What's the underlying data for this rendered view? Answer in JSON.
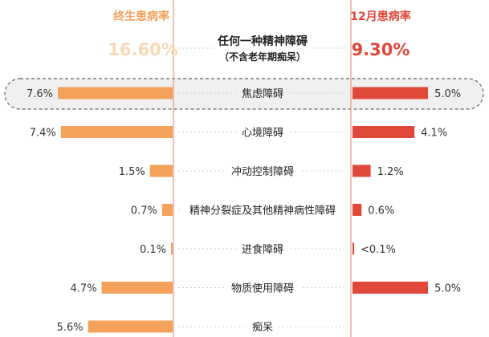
{
  "chart_data": {
    "type": "bar",
    "title": "任何一种精神障碍",
    "subtitle": "（不含老年期痴呆）",
    "categories": [
      "焦虑障碍",
      "心境障碍",
      "冲动控制障碍",
      "精神分裂症及其他精神病性障碍",
      "进食障碍",
      "物质使用障碍",
      "痴呆"
    ],
    "series": [
      {
        "name": "终生患病率",
        "total_label": "16.60%",
        "values": [
          7.6,
          7.4,
          1.5,
          0.7,
          0.1,
          4.7,
          5.6
        ],
        "value_labels": [
          "7.6%",
          "7.4%",
          "1.5%",
          "0.7%",
          "0.1%",
          "4.7%",
          "5.6%"
        ]
      },
      {
        "name": "12月患病率",
        "total_label": "9.30%",
        "values": [
          5.0,
          4.1,
          1.2,
          0.6,
          0.05,
          5.0,
          null
        ],
        "value_labels": [
          "5.0%",
          "4.1%",
          "1.2%",
          "0.6%",
          "<0.1%",
          "5.0%",
          ""
        ]
      }
    ],
    "highlighted_category": "焦虑障碍",
    "xlim": [
      0,
      8
    ],
    "colors": {
      "lifetime_bar": "#f4a25b",
      "twelve_month_bar": "#e0483a",
      "lifetime_header": "#f4a25b",
      "twelve_month_header": "#e0483a",
      "divider": "#e8968c"
    }
  }
}
